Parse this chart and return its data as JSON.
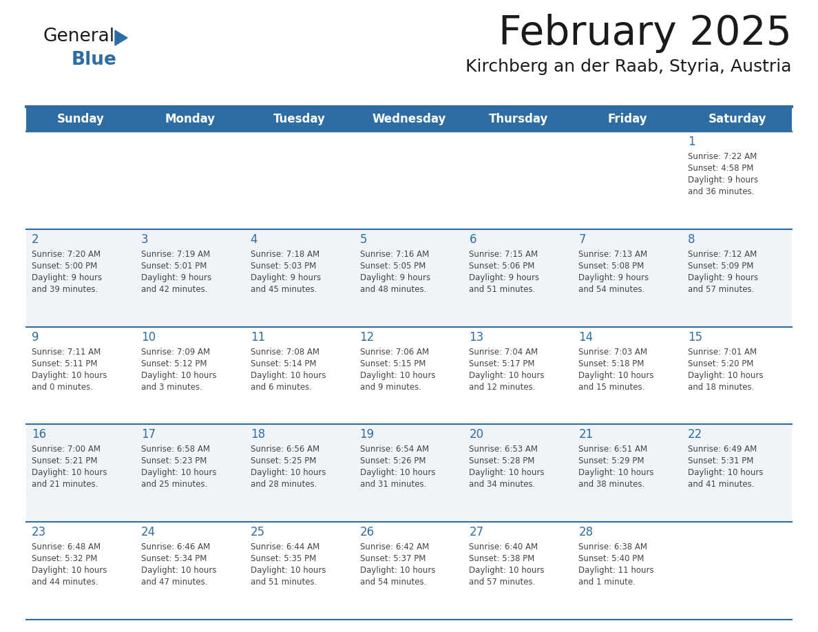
{
  "title": "February 2025",
  "subtitle": "Kirchberg an der Raab, Styria, Austria",
  "days_of_week": [
    "Sunday",
    "Monday",
    "Tuesday",
    "Wednesday",
    "Thursday",
    "Friday",
    "Saturday"
  ],
  "header_bg": "#2E6DA4",
  "header_text": "#FFFFFF",
  "cell_bg_odd": "#FFFFFF",
  "cell_bg_even": "#F0F4F8",
  "border_color": "#2E6DA4",
  "day_num_color": "#2E6DA4",
  "text_color": "#444444",
  "title_color": "#1a1a1a",
  "subtitle_color": "#1a1a1a",
  "calendar": [
    [
      null,
      null,
      null,
      null,
      null,
      null,
      {
        "day": 1,
        "sunrise": "7:22 AM",
        "sunset": "4:58 PM",
        "daylight": "9 hours and 36 minutes."
      }
    ],
    [
      {
        "day": 2,
        "sunrise": "7:20 AM",
        "sunset": "5:00 PM",
        "daylight": "9 hours and 39 minutes."
      },
      {
        "day": 3,
        "sunrise": "7:19 AM",
        "sunset": "5:01 PM",
        "daylight": "9 hours and 42 minutes."
      },
      {
        "day": 4,
        "sunrise": "7:18 AM",
        "sunset": "5:03 PM",
        "daylight": "9 hours and 45 minutes."
      },
      {
        "day": 5,
        "sunrise": "7:16 AM",
        "sunset": "5:05 PM",
        "daylight": "9 hours and 48 minutes."
      },
      {
        "day": 6,
        "sunrise": "7:15 AM",
        "sunset": "5:06 PM",
        "daylight": "9 hours and 51 minutes."
      },
      {
        "day": 7,
        "sunrise": "7:13 AM",
        "sunset": "5:08 PM",
        "daylight": "9 hours and 54 minutes."
      },
      {
        "day": 8,
        "sunrise": "7:12 AM",
        "sunset": "5:09 PM",
        "daylight": "9 hours and 57 minutes."
      }
    ],
    [
      {
        "day": 9,
        "sunrise": "7:11 AM",
        "sunset": "5:11 PM",
        "daylight": "10 hours and 0 minutes."
      },
      {
        "day": 10,
        "sunrise": "7:09 AM",
        "sunset": "5:12 PM",
        "daylight": "10 hours and 3 minutes."
      },
      {
        "day": 11,
        "sunrise": "7:08 AM",
        "sunset": "5:14 PM",
        "daylight": "10 hours and 6 minutes."
      },
      {
        "day": 12,
        "sunrise": "7:06 AM",
        "sunset": "5:15 PM",
        "daylight": "10 hours and 9 minutes."
      },
      {
        "day": 13,
        "sunrise": "7:04 AM",
        "sunset": "5:17 PM",
        "daylight": "10 hours and 12 minutes."
      },
      {
        "day": 14,
        "sunrise": "7:03 AM",
        "sunset": "5:18 PM",
        "daylight": "10 hours and 15 minutes."
      },
      {
        "day": 15,
        "sunrise": "7:01 AM",
        "sunset": "5:20 PM",
        "daylight": "10 hours and 18 minutes."
      }
    ],
    [
      {
        "day": 16,
        "sunrise": "7:00 AM",
        "sunset": "5:21 PM",
        "daylight": "10 hours and 21 minutes."
      },
      {
        "day": 17,
        "sunrise": "6:58 AM",
        "sunset": "5:23 PM",
        "daylight": "10 hours and 25 minutes."
      },
      {
        "day": 18,
        "sunrise": "6:56 AM",
        "sunset": "5:25 PM",
        "daylight": "10 hours and 28 minutes."
      },
      {
        "day": 19,
        "sunrise": "6:54 AM",
        "sunset": "5:26 PM",
        "daylight": "10 hours and 31 minutes."
      },
      {
        "day": 20,
        "sunrise": "6:53 AM",
        "sunset": "5:28 PM",
        "daylight": "10 hours and 34 minutes."
      },
      {
        "day": 21,
        "sunrise": "6:51 AM",
        "sunset": "5:29 PM",
        "daylight": "10 hours and 38 minutes."
      },
      {
        "day": 22,
        "sunrise": "6:49 AM",
        "sunset": "5:31 PM",
        "daylight": "10 hours and 41 minutes."
      }
    ],
    [
      {
        "day": 23,
        "sunrise": "6:48 AM",
        "sunset": "5:32 PM",
        "daylight": "10 hours and 44 minutes."
      },
      {
        "day": 24,
        "sunrise": "6:46 AM",
        "sunset": "5:34 PM",
        "daylight": "10 hours and 47 minutes."
      },
      {
        "day": 25,
        "sunrise": "6:44 AM",
        "sunset": "5:35 PM",
        "daylight": "10 hours and 51 minutes."
      },
      {
        "day": 26,
        "sunrise": "6:42 AM",
        "sunset": "5:37 PM",
        "daylight": "10 hours and 54 minutes."
      },
      {
        "day": 27,
        "sunrise": "6:40 AM",
        "sunset": "5:38 PM",
        "daylight": "10 hours and 57 minutes."
      },
      {
        "day": 28,
        "sunrise": "6:38 AM",
        "sunset": "5:40 PM",
        "daylight": "11 hours and 1 minute."
      },
      null
    ]
  ]
}
